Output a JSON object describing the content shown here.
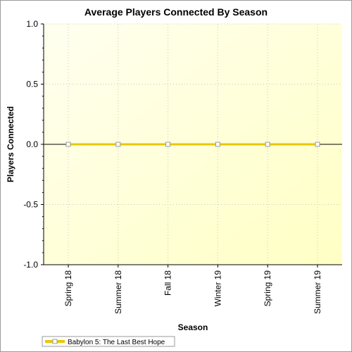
{
  "chart_data": {
    "type": "line",
    "title": "Average Players Connected By Season",
    "xlabel": "Season",
    "ylabel": "Players Connected",
    "categories": [
      "Spring 18",
      "Summer 18",
      "Fall 18",
      "Winter 19",
      "Spring 19",
      "Summer 19"
    ],
    "ylim": [
      -1.0,
      1.0
    ],
    "yticks": [
      "1.0",
      "0.5",
      "0.0",
      "-0.5",
      "-1.0"
    ],
    "ytick_values": [
      1.0,
      0.5,
      0.0,
      -0.5,
      -1.0
    ],
    "grid": true,
    "legend_position": "bottom-left",
    "series": [
      {
        "name": "Babylon 5: The Last Best Hope",
        "values": [
          0,
          0,
          0,
          0,
          0,
          0
        ],
        "color": "#e6c800",
        "marker_fill": "#ffffff"
      }
    ]
  },
  "colors": {
    "plot_bg_start": "#fffff0",
    "plot_bg_end": "#ffffc4",
    "grid": "#c8c8c8",
    "zero_line": "#000000"
  }
}
